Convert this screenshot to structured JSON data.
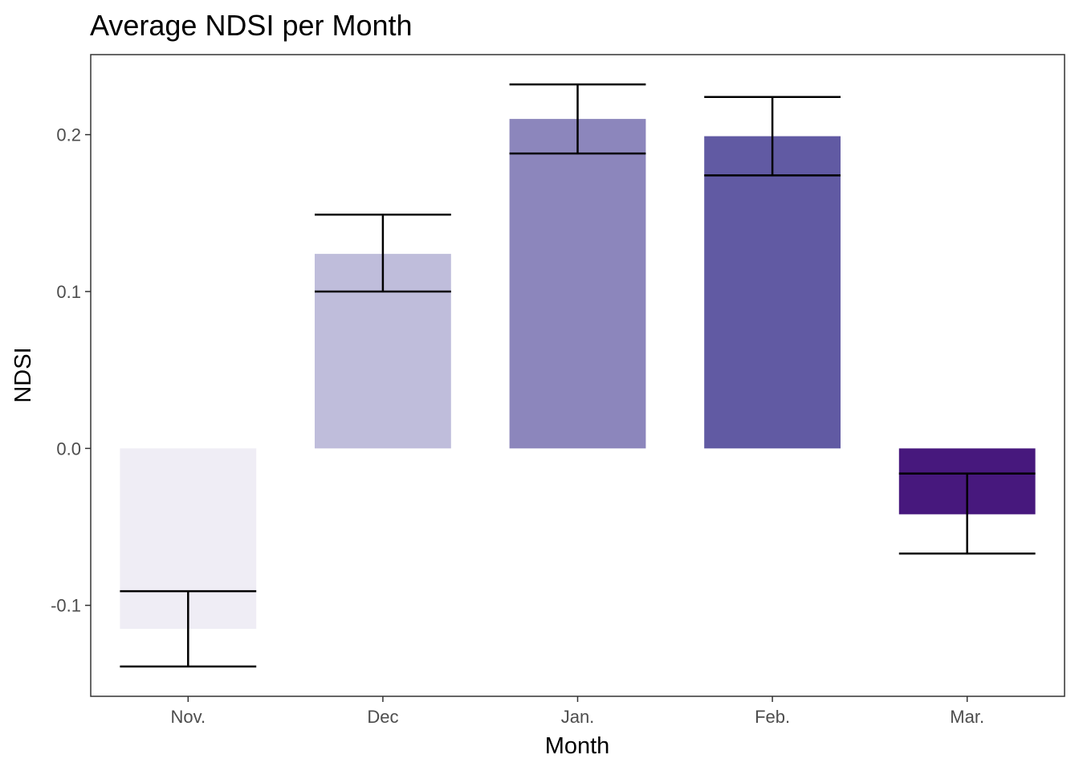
{
  "chart_data": {
    "type": "bar",
    "title": "Average NDSI per Month",
    "xlabel": "Month",
    "ylabel": "NDSI",
    "categories": [
      "Nov.",
      "Dec",
      "Jan.",
      "Feb.",
      "Mar."
    ],
    "values": [
      -0.115,
      0.124,
      0.21,
      0.199,
      -0.042
    ],
    "error_bars": [
      {
        "low": -0.139,
        "high": -0.091
      },
      {
        "low": 0.1,
        "high": 0.149
      },
      {
        "low": 0.188,
        "high": 0.232
      },
      {
        "low": 0.174,
        "high": 0.224
      },
      {
        "low": -0.067,
        "high": -0.016
      }
    ],
    "colors": [
      "#efedf5",
      "#bfbddb",
      "#8c86bc",
      "#615aa3",
      "#47187d"
    ],
    "ylim": [
      -0.158,
      0.251
    ],
    "yticks": [
      -0.1,
      0.0,
      0.1,
      0.2
    ],
    "ytick_labels": [
      "-0.1",
      "0.0",
      "0.1",
      "0.2"
    ],
    "grid": false,
    "legend": "none"
  }
}
